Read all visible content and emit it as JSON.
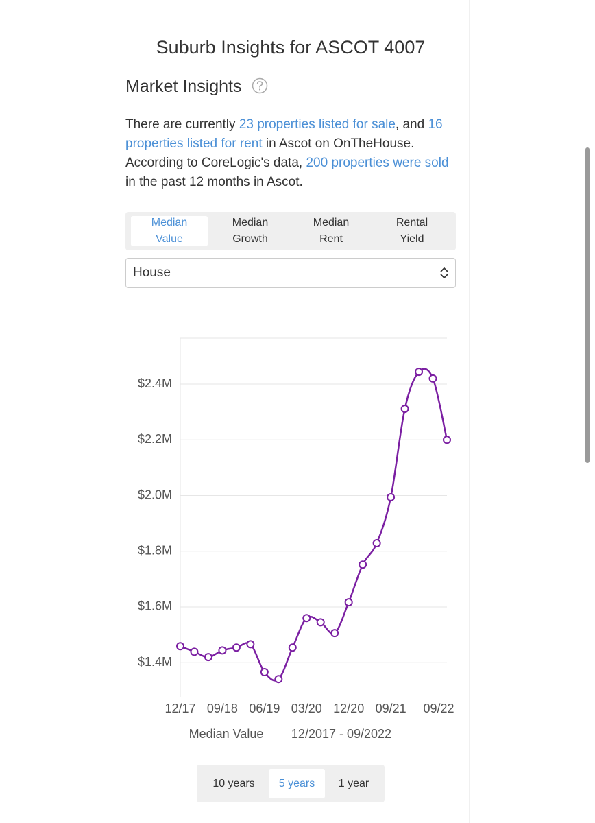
{
  "header": {
    "title": "Suburb Insights for ASCOT 4007"
  },
  "market": {
    "heading": "Market Insights",
    "paragraph": [
      "There are currently ",
      "23 properties listed for sale",
      ", and ",
      "16 properties listed for rent",
      " in Ascot on OnTheHouse. According to CoreLogic's data, ",
      "200 properties were sold",
      " in the past 12 months in Ascot."
    ],
    "tabs": [
      "Median Value",
      "Median Growth",
      "Median Rent",
      "Rental Yield"
    ],
    "select": "House"
  },
  "chart_data": {
    "type": "line",
    "categories": [
      "12/17",
      null,
      null,
      "09/18",
      null,
      null,
      "06/19",
      null,
      null,
      "03/20",
      null,
      null,
      "12/20",
      null,
      null,
      "09/21",
      null,
      null,
      null,
      "09/22"
    ],
    "series": [
      {
        "name": "Median Value",
        "color": "#7b1fa2",
        "values": [
          1459000,
          1439000,
          1420000,
          1444000,
          1454000,
          1466000,
          1366000,
          1341000,
          1454000,
          1560000,
          1545000,
          1506000,
          1617000,
          1752000,
          1829000,
          1994000,
          2311000,
          2444000,
          2420000,
          2200000
        ]
      }
    ],
    "ylim": [
      1275000,
      2565000
    ],
    "yticks": [
      {
        "value": 1400000,
        "label": "$1.4M"
      },
      {
        "value": 1600000,
        "label": "$1.6M"
      },
      {
        "value": 1800000,
        "label": "$1.8M"
      },
      {
        "value": 2000000,
        "label": "$2.0M"
      },
      {
        "value": 2200000,
        "label": "$2.2M"
      },
      {
        "value": 2400000,
        "label": "$2.4M"
      }
    ],
    "grid": true,
    "range": "12/2017 - 09/2022"
  },
  "periods": {
    "options": [
      "10 years",
      "5 years",
      "1 year"
    ],
    "selected": "5 years"
  }
}
